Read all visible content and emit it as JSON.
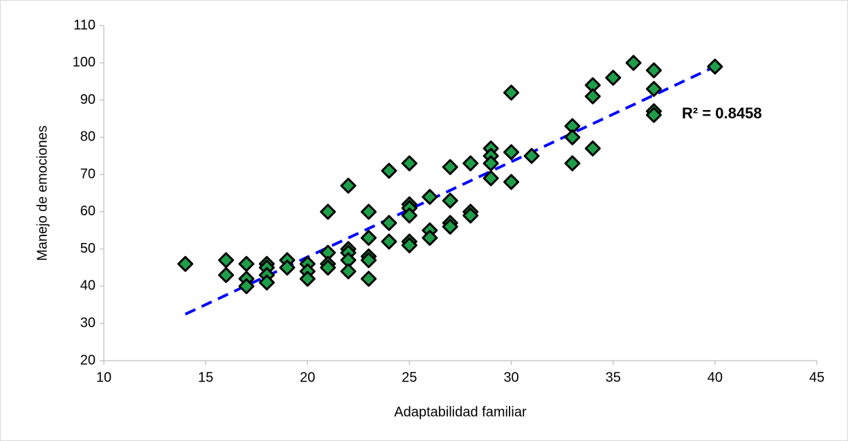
{
  "chart_data": {
    "type": "scatter",
    "x_label": "Adaptabilidad familiar",
    "y_label": "Manejo de emociones",
    "annotation": "R² = 0.8458",
    "color": "#1f9e4a",
    "xlim": [
      10,
      45
    ],
    "xticks": [
      10,
      15,
      20,
      25,
      30,
      35,
      40,
      45
    ],
    "ylim": [
      20,
      110
    ],
    "yticks": [
      20,
      30,
      40,
      50,
      60,
      70,
      80,
      90,
      100,
      110
    ],
    "grid": false,
    "x": [
      14,
      16,
      16,
      17,
      17,
      17,
      18,
      18,
      18,
      18,
      19,
      19,
      20,
      20,
      20,
      21,
      21,
      21,
      21,
      22,
      22,
      22,
      22,
      22,
      23,
      23,
      23,
      23,
      23,
      24,
      24,
      24,
      25,
      25,
      25,
      25,
      25,
      25,
      26,
      26,
      26,
      27,
      27,
      27,
      27,
      28,
      28,
      28,
      29,
      29,
      29,
      29,
      30,
      30,
      30,
      31,
      33,
      33,
      33,
      34,
      34,
      34,
      35,
      36,
      37,
      37,
      37,
      37,
      40
    ],
    "values": [
      46,
      47,
      43,
      46,
      42,
      40,
      46,
      45,
      43,
      41,
      47,
      45,
      46,
      44,
      42,
      60,
      49,
      46,
      45,
      67,
      50,
      49,
      47,
      44,
      60,
      53,
      48,
      47,
      42,
      71,
      57,
      52,
      73,
      62,
      61,
      59,
      52,
      51,
      64,
      55,
      53,
      72,
      63,
      57,
      56,
      73,
      60,
      59,
      77,
      75,
      73,
      69,
      92,
      76,
      68,
      75,
      83,
      80,
      73,
      94,
      91,
      77,
      96,
      100,
      98,
      93,
      87,
      86,
      99
    ],
    "trendline": {
      "color": "#0000ff",
      "x": [
        14,
        40
      ],
      "values": [
        32.5,
        99
      ]
    }
  }
}
